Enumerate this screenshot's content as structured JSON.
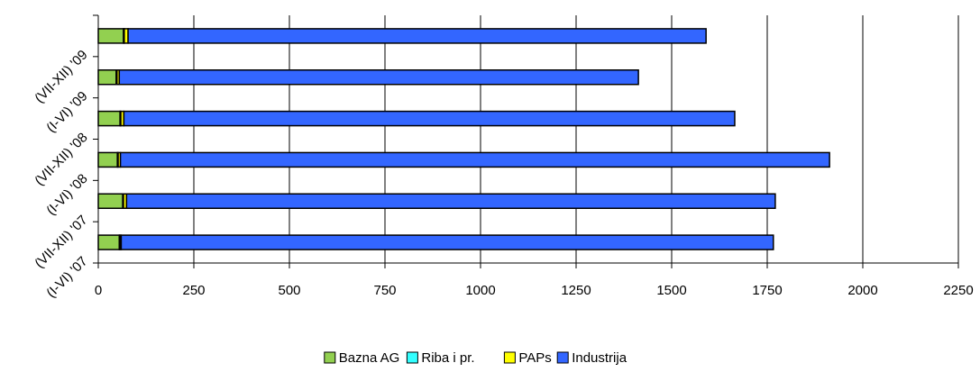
{
  "chart_data": {
    "type": "stacked-barh",
    "categories": [
      "(I-VI) '07",
      "(VII-XII) '07",
      "(I-VI) '08",
      "(VII-XII) '08",
      "(I-VI) '09",
      "(VII-XII) '09"
    ],
    "series": [
      {
        "name": "Bazna AG",
        "color": "#92d050",
        "values": [
          55,
          64,
          50,
          57,
          47,
          66
        ]
      },
      {
        "name": "Riba i pr.",
        "color": "#33ffff",
        "values": [
          2,
          2,
          2,
          2,
          2,
          2
        ]
      },
      {
        "name": "PAPs",
        "color": "#ffff00",
        "values": [
          3,
          8,
          6,
          8,
          6,
          10
        ]
      },
      {
        "name": "Industrija",
        "color": "#3366ff",
        "values": [
          1706,
          1697,
          1855,
          1598,
          1358,
          1512
        ]
      }
    ],
    "xlim": [
      0,
      2250
    ],
    "xticks": [
      0,
      250,
      500,
      750,
      1000,
      1250,
      1500,
      1750,
      2000,
      2250
    ],
    "grid": true,
    "legend": "bottom"
  }
}
